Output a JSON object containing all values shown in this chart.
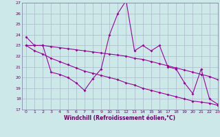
{
  "x": [
    0,
    1,
    2,
    3,
    4,
    5,
    6,
    7,
    8,
    9,
    10,
    11,
    12,
    13,
    14,
    15,
    16,
    17,
    18,
    19,
    20,
    21,
    22,
    23
  ],
  "line1": [
    23.8,
    23.0,
    23.0,
    20.5,
    20.3,
    20.0,
    19.5,
    18.8,
    19.9,
    20.8,
    24.0,
    26.0,
    27.2,
    22.5,
    23.0,
    22.5,
    23.0,
    21.0,
    20.8,
    19.5,
    18.5,
    20.8,
    18.0,
    17.5
  ],
  "line2": [
    23.0,
    23.0,
    23.0,
    22.9,
    22.8,
    22.7,
    22.6,
    22.5,
    22.4,
    22.3,
    22.2,
    22.1,
    22.0,
    21.8,
    21.7,
    21.5,
    21.3,
    21.1,
    20.9,
    20.7,
    20.5,
    20.3,
    20.1,
    19.8
  ],
  "line3": [
    23.0,
    22.5,
    22.2,
    21.8,
    21.5,
    21.2,
    20.9,
    20.6,
    20.4,
    20.2,
    20.0,
    19.8,
    19.5,
    19.3,
    19.0,
    18.8,
    18.6,
    18.4,
    18.2,
    18.0,
    17.8,
    17.7,
    17.6,
    17.4
  ],
  "ylim": [
    17,
    27
  ],
  "xlim": [
    -0.5,
    23
  ],
  "yticks": [
    17,
    18,
    19,
    20,
    21,
    22,
    23,
    24,
    25,
    26,
    27
  ],
  "xticks": [
    0,
    1,
    2,
    3,
    4,
    5,
    6,
    7,
    8,
    9,
    10,
    11,
    12,
    13,
    14,
    15,
    16,
    17,
    18,
    19,
    20,
    21,
    22,
    23
  ],
  "xlabel": "Windchill (Refroidissement éolien,°C)",
  "line_color": "#990099",
  "bg_color": "#cce8e8",
  "grid_color": "#aab8cc",
  "tick_color": "#660066"
}
